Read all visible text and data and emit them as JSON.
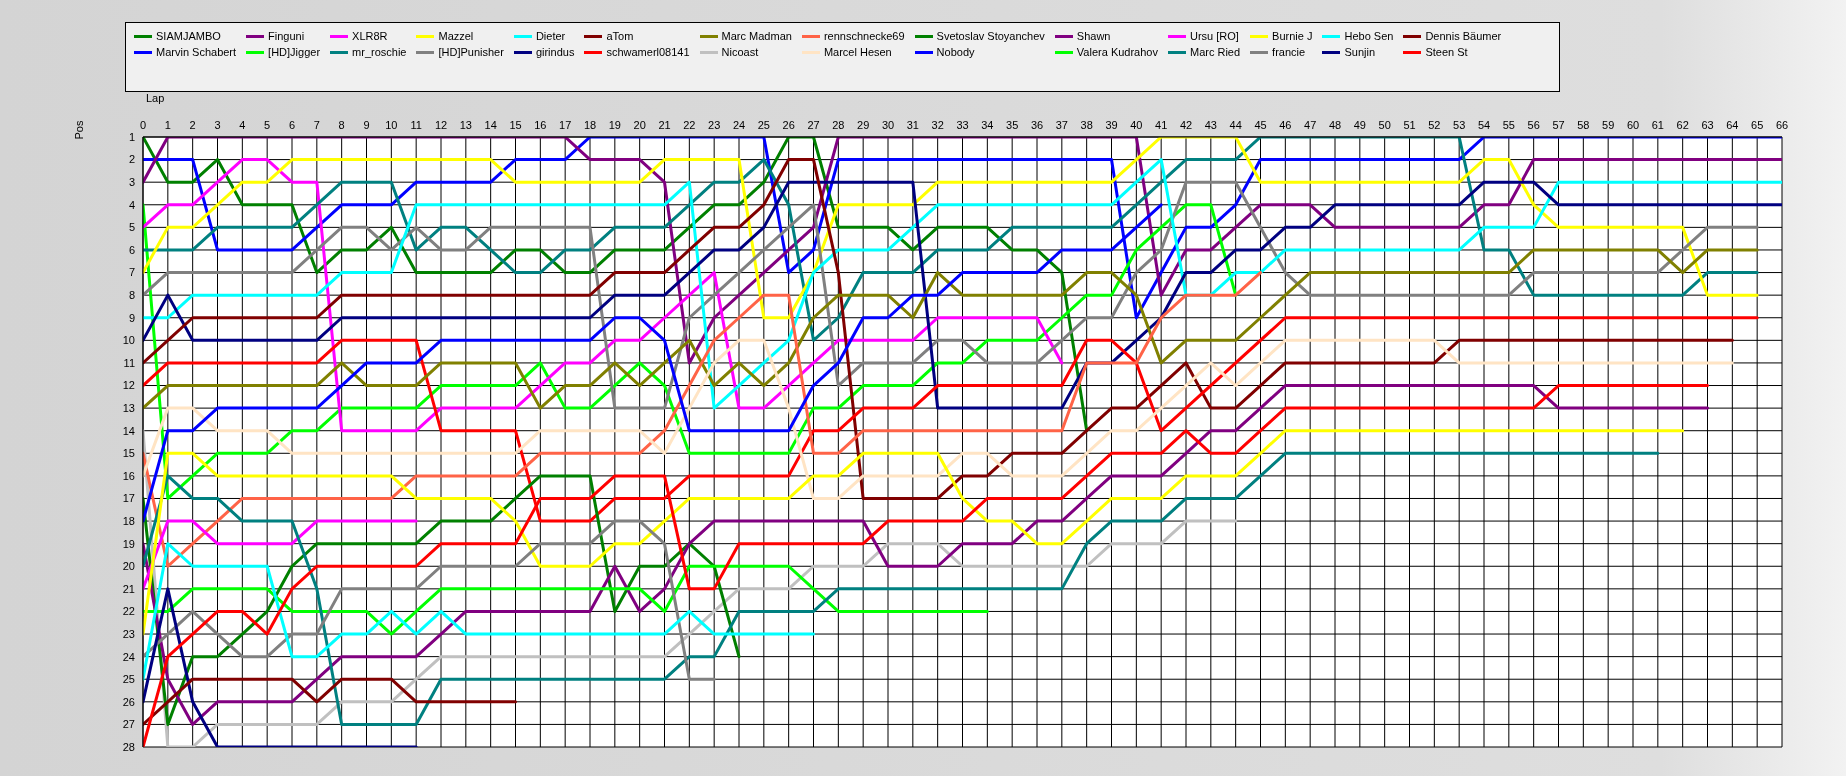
{
  "chart_data": {
    "type": "line",
    "xlabel": "Lap",
    "ylabel": "Pos",
    "xlim": [
      0,
      66
    ],
    "xticks": [
      0,
      1,
      2,
      3,
      4,
      5,
      6,
      7,
      8,
      9,
      10,
      11,
      12,
      13,
      14,
      15,
      16,
      17,
      18,
      19,
      20,
      21,
      22,
      23,
      24,
      25,
      26,
      27,
      28,
      29,
      30,
      31,
      32,
      33,
      34,
      35,
      36,
      37,
      38,
      39,
      40,
      41,
      42,
      43,
      44,
      45,
      46,
      47,
      48,
      49,
      50,
      51,
      52,
      53,
      54,
      55,
      56,
      57,
      58,
      59,
      60,
      61,
      62,
      63,
      64,
      65,
      66
    ],
    "ylim": [
      28,
      1
    ],
    "yticks": [
      1,
      2,
      3,
      4,
      5,
      6,
      7,
      8,
      9,
      10,
      11,
      12,
      13,
      14,
      15,
      16,
      17,
      18,
      19,
      20,
      21,
      22,
      23,
      24,
      25,
      26,
      27,
      28
    ],
    "grid": true,
    "legend": "top",
    "marker": "none",
    "line_style": "solid",
    "series": [
      {
        "name": "SIAMJAMBO",
        "color": "#008000",
        "x": [
          0,
          1,
          2,
          3,
          4,
          6,
          7,
          8,
          9,
          10,
          11,
          14,
          15,
          16,
          17,
          18,
          19,
          21,
          22,
          23,
          24,
          25,
          26,
          27,
          28,
          30,
          31,
          32,
          34,
          35,
          36,
          37,
          38
        ],
        "values": [
          1,
          3,
          3,
          2,
          4,
          4,
          7,
          6,
          6,
          5,
          7,
          7,
          6,
          6,
          7,
          7,
          6,
          6,
          5,
          4,
          4,
          3,
          1,
          1,
          5,
          5,
          6,
          5,
          5,
          6,
          6,
          7,
          14
        ]
      },
      {
        "name": "Marvin Schabert",
        "color": "#0000ff",
        "x": [
          0,
          2,
          3,
          6,
          8,
          10,
          11,
          14,
          15,
          17,
          18,
          25,
          26,
          27,
          28,
          39,
          40,
          41,
          42,
          43,
          44,
          45,
          53,
          54,
          66
        ],
        "values": [
          2,
          2,
          6,
          6,
          4,
          4,
          3,
          3,
          2,
          2,
          1,
          1,
          7,
          6,
          2,
          2,
          9,
          7,
          5,
          5,
          4,
          2,
          2,
          1,
          1
        ]
      },
      {
        "name": "Finguni",
        "color": "#800080",
        "x": [
          0,
          1,
          17,
          18,
          20,
          21,
          22,
          23,
          24,
          25,
          26,
          27,
          28,
          40,
          41,
          42,
          43,
          44,
          45,
          47,
          48,
          53,
          54,
          55,
          56,
          66
        ],
        "values": [
          3,
          1,
          1,
          2,
          2,
          3,
          11,
          9,
          8,
          7,
          6,
          5,
          1,
          1,
          8,
          6,
          6,
          5,
          4,
          4,
          5,
          5,
          4,
          4,
          2,
          2
        ]
      },
      {
        "name": "[HD]Jigger",
        "color": "#00ff00",
        "x": [
          0,
          1,
          2,
          3,
          5,
          6,
          7,
          8,
          11,
          12,
          15,
          16,
          17,
          18,
          19,
          20,
          21,
          22,
          26,
          27,
          28,
          29,
          31,
          32,
          33,
          34,
          36,
          37,
          38,
          39,
          40,
          41,
          42,
          43,
          44
        ],
        "values": [
          4,
          17,
          16,
          15,
          15,
          14,
          14,
          13,
          13,
          12,
          12,
          11,
          13,
          13,
          12,
          11,
          12,
          15,
          15,
          13,
          13,
          12,
          12,
          11,
          11,
          10,
          10,
          9,
          8,
          8,
          6,
          5,
          4,
          4,
          8
        ]
      },
      {
        "name": "XLR8R",
        "color": "#ff00ff",
        "x": [
          0,
          1,
          2,
          3,
          4,
          5,
          6,
          7,
          8,
          11,
          12,
          15,
          16,
          17,
          18,
          19,
          20,
          21,
          22,
          23,
          24,
          25,
          26,
          27,
          28,
          31,
          32,
          36,
          37
        ],
        "values": [
          5,
          4,
          4,
          3,
          2,
          2,
          3,
          3,
          14,
          14,
          13,
          13,
          12,
          11,
          11,
          10,
          10,
          9,
          8,
          7,
          13,
          13,
          12,
          11,
          10,
          10,
          9,
          9,
          11
        ]
      },
      {
        "name": "mr_roschie",
        "color": "#008080",
        "x": [
          0,
          2,
          3,
          6,
          8,
          10,
          11,
          12,
          13,
          14,
          15,
          16,
          17,
          18,
          19,
          21,
          22,
          23,
          24,
          25,
          26,
          27,
          28,
          29,
          31,
          32,
          34,
          35,
          39,
          40,
          41,
          42,
          44,
          45,
          53,
          54,
          55,
          56,
          62,
          63,
          65
        ],
        "values": [
          6,
          6,
          5,
          5,
          3,
          3,
          6,
          5,
          5,
          6,
          7,
          7,
          6,
          6,
          5,
          5,
          4,
          3,
          3,
          2,
          4,
          10,
          9,
          7,
          7,
          6,
          6,
          5,
          5,
          4,
          3,
          2,
          2,
          1,
          1,
          6,
          6,
          8,
          8,
          7,
          7
        ]
      },
      {
        "name": "Mazzel",
        "color": "#ffff00",
        "x": [
          0,
          1,
          2,
          3,
          4,
          5,
          6,
          14,
          15,
          20,
          21,
          24,
          25,
          26,
          27,
          28,
          31,
          32,
          39,
          40,
          41,
          44,
          45,
          53,
          54,
          55,
          56,
          57,
          62,
          63,
          65
        ],
        "values": [
          7,
          5,
          5,
          4,
          3,
          3,
          2,
          2,
          3,
          3,
          2,
          2,
          9,
          9,
          7,
          4,
          4,
          3,
          3,
          2,
          1,
          1,
          3,
          3,
          2,
          2,
          4,
          5,
          5,
          8,
          8
        ]
      },
      {
        "name": "[HD]Punisher",
        "color": "#808080",
        "x": [
          0,
          1,
          6,
          8,
          9,
          10,
          11,
          12,
          13,
          14,
          18,
          19,
          21,
          22,
          23,
          24,
          25,
          26,
          27,
          28,
          29,
          31,
          32,
          33,
          34,
          36,
          37,
          38,
          39,
          40,
          41,
          42,
          44,
          46,
          47,
          55,
          56,
          61,
          63,
          65
        ],
        "values": [
          8,
          7,
          7,
          5,
          5,
          6,
          5,
          6,
          6,
          5,
          5,
          13,
          13,
          9,
          8,
          7,
          6,
          5,
          4,
          12,
          11,
          11,
          10,
          10,
          11,
          11,
          10,
          9,
          9,
          7,
          6,
          3,
          3,
          7,
          8,
          8,
          7,
          7,
          5,
          5
        ]
      },
      {
        "name": "Dieter",
        "color": "#00ffff",
        "x": [
          0,
          1,
          2,
          7,
          8,
          10,
          11,
          21,
          22,
          23,
          24,
          25,
          26,
          27,
          28,
          30,
          31,
          32,
          39,
          40,
          41,
          42,
          43,
          44,
          45,
          46,
          53,
          54,
          56,
          57,
          66
        ],
        "values": [
          9,
          9,
          8,
          8,
          7,
          7,
          4,
          4,
          3,
          13,
          12,
          11,
          10,
          7,
          6,
          6,
          5,
          4,
          4,
          3,
          2,
          8,
          8,
          7,
          7,
          6,
          6,
          5,
          5,
          3,
          3
        ]
      },
      {
        "name": "girindus",
        "color": "#000080",
        "x": [
          0,
          1,
          2,
          7,
          8,
          18,
          19,
          21,
          22,
          23,
          24,
          25,
          26,
          31,
          32,
          37,
          38,
          39,
          40,
          41,
          42,
          43,
          44,
          45,
          46,
          47,
          48,
          53,
          54,
          56,
          57,
          66
        ],
        "values": [
          10,
          8,
          10,
          10,
          9,
          9,
          8,
          8,
          7,
          6,
          6,
          5,
          3,
          3,
          13,
          13,
          11,
          11,
          10,
          9,
          7,
          7,
          6,
          6,
          5,
          5,
          4,
          4,
          3,
          3,
          4,
          4
        ]
      },
      {
        "name": "aTom",
        "color": "#800000",
        "x": [
          0,
          1,
          2,
          7,
          8,
          18,
          19,
          21,
          22,
          23,
          24,
          25,
          26,
          27,
          28,
          29,
          32,
          33,
          34,
          35,
          37,
          38,
          39,
          40,
          41,
          42,
          43,
          44,
          45,
          46,
          52,
          53,
          64
        ],
        "values": [
          11,
          10,
          9,
          9,
          8,
          8,
          7,
          7,
          6,
          5,
          5,
          4,
          2,
          2,
          7,
          17,
          17,
          16,
          16,
          15,
          15,
          14,
          13,
          13,
          12,
          11,
          13,
          13,
          12,
          11,
          11,
          10,
          10
        ]
      },
      {
        "name": "schwamerl08141",
        "color": "#ff0000",
        "x": [
          0,
          1,
          7,
          8,
          11,
          12,
          15,
          16,
          18,
          19,
          21,
          22,
          26,
          27,
          28,
          29,
          31,
          32,
          37,
          38,
          39,
          40,
          41,
          46,
          65
        ],
        "values": [
          12,
          11,
          11,
          10,
          10,
          14,
          14,
          18,
          18,
          17,
          17,
          16,
          16,
          14,
          14,
          13,
          13,
          12,
          12,
          10,
          10,
          11,
          14,
          9,
          9
        ]
      },
      {
        "name": "Marc Madman",
        "color": "#808000",
        "x": [
          0,
          1,
          7,
          8,
          9,
          11,
          12,
          15,
          16,
          17,
          18,
          19,
          20,
          21,
          22,
          23,
          24,
          25,
          26,
          27,
          28,
          30,
          31,
          32,
          33,
          37,
          38,
          39,
          40,
          41,
          42,
          44,
          45,
          46,
          47,
          55,
          56,
          61,
          62,
          63,
          65
        ],
        "values": [
          13,
          12,
          12,
          11,
          12,
          12,
          11,
          11,
          13,
          12,
          12,
          11,
          12,
          11,
          10,
          12,
          11,
          12,
          11,
          9,
          8,
          8,
          9,
          7,
          8,
          8,
          7,
          7,
          8,
          11,
          10,
          10,
          9,
          8,
          7,
          7,
          6,
          6,
          7,
          6,
          6
        ]
      },
      {
        "name": "Nicoast",
        "color": "#c0c0c0",
        "x": [
          0,
          1,
          2,
          3,
          7,
          8,
          10,
          11,
          12,
          21,
          22,
          23,
          24,
          26,
          27,
          29,
          30,
          32,
          33,
          38,
          39,
          41,
          42,
          44
        ],
        "values": [
          14,
          28,
          28,
          27,
          27,
          26,
          26,
          25,
          24,
          24,
          23,
          22,
          21,
          21,
          20,
          20,
          19,
          19,
          20,
          20,
          19,
          19,
          18,
          18
        ]
      },
      {
        "name": "rennschnecke69",
        "color": "#ff6347",
        "x": [
          0,
          1,
          2,
          3,
          4,
          10,
          11,
          15,
          16,
          20,
          21,
          22,
          23,
          24,
          25,
          26,
          27,
          28,
          29,
          37,
          38,
          40,
          41,
          42,
          44,
          45
        ],
        "values": [
          15,
          20,
          19,
          18,
          17,
          17,
          16,
          16,
          15,
          15,
          14,
          12,
          10,
          9,
          8,
          8,
          15,
          15,
          14,
          14,
          11,
          11,
          9,
          8,
          8,
          7
        ]
      },
      {
        "name": "Marcel Hesen",
        "color": "#ffe4c4",
        "x": [
          0,
          1,
          2,
          3,
          5,
          6,
          15,
          16,
          20,
          21,
          22,
          23,
          24,
          25,
          26,
          27,
          28,
          29,
          32,
          33,
          34,
          35,
          37,
          38,
          39,
          40,
          41,
          42,
          43,
          44,
          45,
          46,
          52,
          53,
          64
        ],
        "values": [
          16,
          13,
          13,
          14,
          14,
          15,
          15,
          14,
          14,
          15,
          13,
          11,
          10,
          10,
          13,
          17,
          17,
          16,
          16,
          15,
          15,
          16,
          16,
          15,
          14,
          14,
          13,
          12,
          11,
          12,
          11,
          10,
          10,
          11,
          11
        ]
      },
      {
        "name": "Svetoslav Stoyanchev",
        "color": "#008000",
        "x": [
          0,
          1,
          2,
          3,
          4,
          5,
          6,
          7,
          11,
          12,
          14,
          15,
          16,
          18,
          19,
          20,
          21,
          22,
          23,
          24
        ],
        "values": [
          17,
          27,
          24,
          24,
          23,
          22,
          20,
          19,
          19,
          18,
          18,
          17,
          16,
          16,
          22,
          20,
          20,
          19,
          20,
          24
        ]
      },
      {
        "name": "Nobody",
        "color": "#0000ff",
        "x": [
          0,
          1,
          2,
          3,
          7,
          8,
          9,
          11,
          12,
          18,
          19,
          20,
          21,
          22,
          26,
          27,
          28,
          29,
          30,
          31,
          32,
          33,
          36,
          37,
          39,
          40,
          41
        ],
        "values": [
          18,
          14,
          14,
          13,
          13,
          12,
          11,
          11,
          10,
          10,
          9,
          9,
          10,
          14,
          14,
          12,
          11,
          9,
          9,
          8,
          8,
          7,
          7,
          6,
          6,
          5,
          4
        ]
      },
      {
        "name": "Shawn",
        "color": "#800080",
        "x": [
          0,
          1,
          2,
          3,
          6,
          7,
          8,
          11,
          12,
          13,
          18,
          19,
          20,
          21,
          22,
          23,
          29,
          30,
          32,
          33,
          35,
          36,
          37,
          38,
          39,
          41,
          42,
          43,
          44,
          45,
          46,
          56,
          57,
          63
        ],
        "values": [
          19,
          25,
          27,
          26,
          26,
          25,
          24,
          24,
          23,
          22,
          22,
          20,
          22,
          21,
          19,
          18,
          18,
          20,
          20,
          19,
          19,
          18,
          18,
          17,
          16,
          16,
          15,
          14,
          14,
          13,
          12,
          12,
          13,
          13
        ]
      },
      {
        "name": "Valera Kudrahov",
        "color": "#00ff00",
        "x": [
          0,
          1,
          2,
          5,
          6,
          9,
          10,
          11,
          12,
          15,
          20,
          21,
          22,
          26,
          27,
          28,
          34
        ],
        "values": [
          22,
          22,
          21,
          21,
          22,
          22,
          23,
          22,
          21,
          21,
          21,
          22,
          20,
          20,
          21,
          22,
          22
        ]
      },
      {
        "name": "Ursu [RO]",
        "color": "#ff00ff",
        "x": [
          0,
          1,
          2,
          3,
          6,
          7,
          11
        ],
        "values": [
          21,
          18,
          18,
          19,
          19,
          18,
          18
        ]
      },
      {
        "name": "Marc Ried",
        "color": "#008080",
        "x": [
          0,
          1,
          2,
          3,
          4,
          6,
          7,
          8,
          11,
          12,
          21,
          22,
          23,
          24,
          27,
          28,
          37,
          38,
          39,
          41,
          42,
          44,
          45,
          46,
          61
        ],
        "values": [
          20,
          16,
          17,
          17,
          18,
          18,
          21,
          27,
          27,
          25,
          25,
          24,
          24,
          22,
          22,
          21,
          21,
          19,
          18,
          18,
          17,
          17,
          16,
          15,
          15
        ]
      },
      {
        "name": "Burnie J",
        "color": "#ffff00",
        "x": [
          0,
          1,
          2,
          3,
          10,
          11,
          14,
          15,
          16,
          18,
          19,
          20,
          21,
          22,
          26,
          27,
          28,
          29,
          32,
          33,
          34,
          35,
          36,
          37,
          38,
          39,
          41,
          42,
          44,
          45,
          46,
          62
        ],
        "values": [
          23,
          15,
          15,
          16,
          16,
          17,
          17,
          18,
          20,
          20,
          19,
          19,
          18,
          17,
          17,
          16,
          16,
          15,
          15,
          17,
          18,
          18,
          19,
          19,
          18,
          17,
          17,
          16,
          16,
          15,
          14,
          14
        ]
      },
      {
        "name": "francie",
        "color": "#808080",
        "x": [
          0,
          1,
          2,
          3,
          4,
          5,
          6,
          7,
          8,
          11,
          12,
          15,
          16,
          18,
          19,
          20,
          21,
          22,
          23
        ],
        "values": [
          24,
          23,
          22,
          23,
          24,
          24,
          23,
          23,
          21,
          21,
          20,
          20,
          19,
          19,
          18,
          18,
          19,
          25,
          25
        ]
      },
      {
        "name": "Hebo Sen",
        "color": "#00ffff",
        "x": [
          0,
          1,
          2,
          5,
          6,
          7,
          8,
          9,
          10,
          11,
          12,
          13,
          21,
          22,
          23,
          27
        ],
        "values": [
          25,
          19,
          20,
          20,
          24,
          24,
          23,
          23,
          22,
          23,
          22,
          23,
          23,
          22,
          23,
          23
        ]
      },
      {
        "name": "Sunjin",
        "color": "#000080",
        "x": [
          0,
          1,
          2,
          3,
          11
        ],
        "values": [
          26,
          21,
          26,
          28,
          28
        ]
      },
      {
        "name": "Dennis Bäumer",
        "color": "#800000",
        "x": [
          0,
          1,
          2,
          6,
          7,
          8,
          10,
          11,
          15
        ],
        "values": [
          27,
          26,
          25,
          25,
          26,
          25,
          25,
          26,
          26
        ]
      },
      {
        "name": "Steen St",
        "color": "#ff0000",
        "x": [
          0,
          1,
          2,
          3,
          4,
          5,
          6,
          7,
          11,
          12,
          15,
          16,
          18,
          19,
          21,
          22,
          23,
          24,
          29,
          30,
          33,
          34,
          37,
          38,
          39,
          41,
          42,
          43,
          44,
          45,
          46,
          56,
          57,
          63
        ],
        "values": [
          28,
          24,
          23,
          22,
          22,
          23,
          21,
          20,
          20,
          19,
          19,
          17,
          17,
          16,
          16,
          21,
          21,
          19,
          19,
          18,
          18,
          17,
          17,
          16,
          15,
          15,
          14,
          15,
          15,
          14,
          13,
          13,
          12,
          12
        ]
      }
    ]
  }
}
